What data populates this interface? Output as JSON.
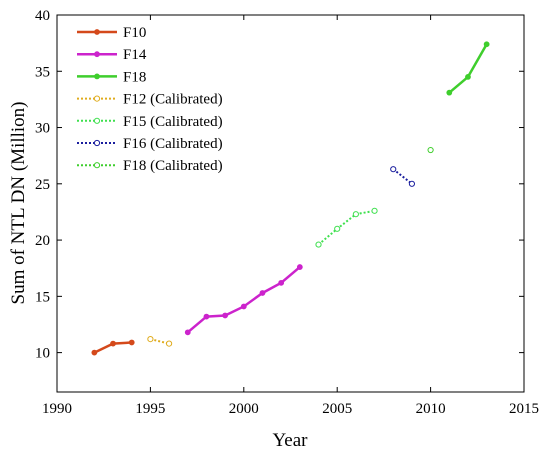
{
  "chart_data": {
    "type": "line",
    "xlabel": "Year",
    "ylabel": "Sum of NTL DN (Million)",
    "xlim": [
      1990,
      2015
    ],
    "ylim": [
      6.5,
      40
    ],
    "xticks": [
      1990,
      1995,
      2000,
      2005,
      2010,
      2015
    ],
    "yticks": [
      10,
      15,
      20,
      25,
      30,
      35,
      40
    ],
    "grid": false,
    "legend_position": "top-left",
    "series": [
      {
        "name": "F10",
        "style": "solid",
        "marker": "filled",
        "color": "#d4491b",
        "x": [
          1992,
          1993,
          1994
        ],
        "y": [
          10.0,
          10.8,
          10.9
        ]
      },
      {
        "name": "F14",
        "style": "solid",
        "marker": "filled",
        "color": "#cc23cc",
        "x": [
          1997,
          1998,
          1999,
          2000,
          2001,
          2002,
          2003
        ],
        "y": [
          11.8,
          13.2,
          13.3,
          14.1,
          15.3,
          16.2,
          17.6
        ]
      },
      {
        "name": "F18",
        "style": "solid",
        "marker": "filled",
        "color": "#3fce2d",
        "x": [
          2011,
          2012,
          2013
        ],
        "y": [
          33.1,
          34.5,
          37.4
        ]
      },
      {
        "name": "F12 (Calibrated)",
        "style": "dotted",
        "marker": "open",
        "color": "#e0ac1e",
        "x": [
          1995,
          1996
        ],
        "y": [
          11.2,
          10.8
        ]
      },
      {
        "name": "F15 (Calibrated)",
        "style": "dotted",
        "marker": "open",
        "color": "#3fe04f",
        "x": [
          2004,
          2005,
          2006,
          2007
        ],
        "y": [
          19.6,
          21.0,
          22.3,
          22.6
        ]
      },
      {
        "name": "F16 (Calibrated)",
        "style": "dotted",
        "marker": "open",
        "color": "#1a1e9e",
        "x": [
          2008,
          2009
        ],
        "y": [
          26.3,
          25.0
        ]
      },
      {
        "name": "F18 (Calibrated)",
        "style": "dotted",
        "marker": "open",
        "color": "#3fce2d",
        "x": [
          2010
        ],
        "y": [
          28.0
        ]
      }
    ]
  }
}
